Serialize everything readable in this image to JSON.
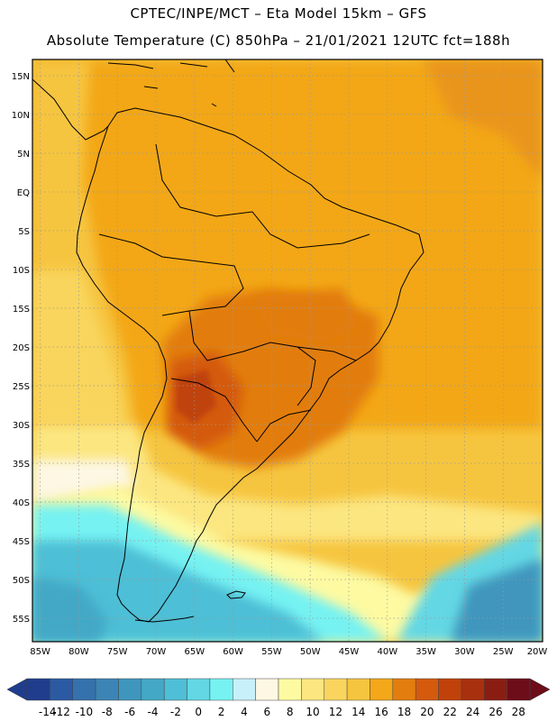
{
  "header": {
    "line1": "CPTEC/INPE/MCT –  Eta Model 15km – GFS",
    "line2": "Absolute Temperature (C) 850hPa – 21/01/2021 12UTC fct=188h"
  },
  "map": {
    "lat_labels": [
      "15N",
      "10N",
      "5N",
      "EQ",
      "5S",
      "10S",
      "15S",
      "20S",
      "25S",
      "30S",
      "35S",
      "40S",
      "45S",
      "50S",
      "55S"
    ],
    "lon_labels": [
      "85W",
      "80W",
      "75W",
      "70W",
      "65W",
      "60W",
      "55W",
      "50W",
      "45W",
      "40W",
      "35W",
      "30W",
      "25W",
      "20W"
    ],
    "grid": "dotted",
    "coastline_color": "#000000"
  },
  "colorbar": {
    "labels": [
      "-14",
      "-12",
      "-10",
      "-8",
      "-6",
      "-4",
      "-2",
      "0",
      "2",
      "4",
      "6",
      "8",
      "10",
      "12",
      "14",
      "16",
      "18",
      "20",
      "22",
      "24",
      "26",
      "28"
    ],
    "colors": [
      "#1f3d8c",
      "#2b5aa3",
      "#3571ad",
      "#3c84b6",
      "#3f96bd",
      "#43a8c6",
      "#4ebfd6",
      "#63d7e4",
      "#76f2f2",
      "#c8f0fb",
      "#fdf7e3",
      "#fdfaa2",
      "#fce680",
      "#f9d55d",
      "#f6c53f",
      "#f3a719",
      "#e27d0e",
      "#d45a0d",
      "#c0420a",
      "#a8300e",
      "#8a1d12",
      "#6d0d1a"
    ]
  }
}
